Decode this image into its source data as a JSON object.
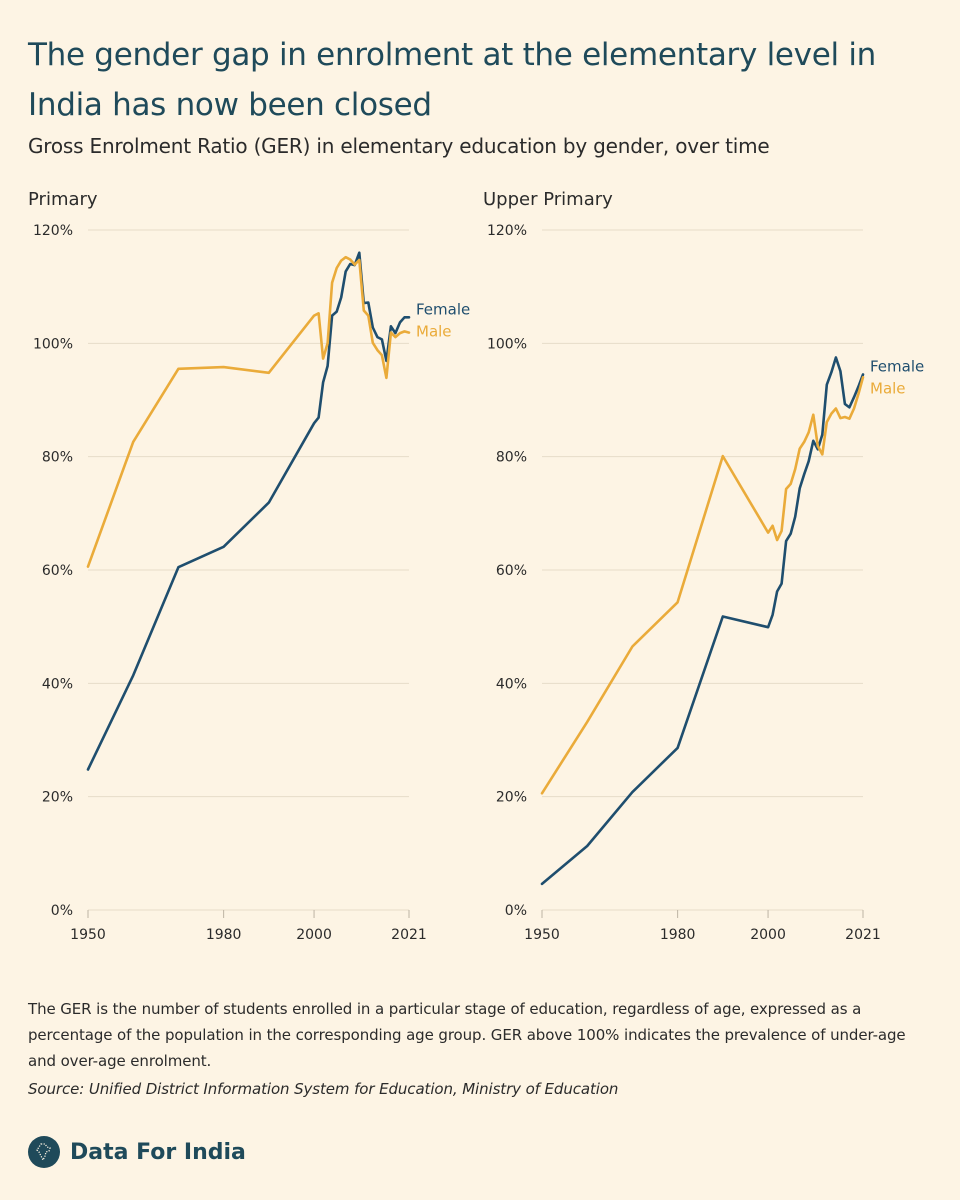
{
  "title": "The gender gap in enrolment at the elementary level in India has now been closed",
  "subtitle": "Gross Enrolment Ratio (GER) in elementary education by gender, over time",
  "footnote": "The GER is the number of students enrolled in a particular stage of education, regardless of age, expressed as a percentage of the population in the corresponding age group. GER above 100% indicates the prevalence of under-age and over-age enrolment.",
  "source": "Source: Unified District Information System for Education, Ministry of Education",
  "brand": {
    "name": "Data For India",
    "logo_icon": "india-map-icon"
  },
  "colors": {
    "female": "#1f4e6e",
    "male": "#eaab3a",
    "grid": "#e6dcc9",
    "background": "#fdf4e4"
  },
  "chart_data": [
    {
      "type": "line",
      "title": "Primary",
      "xlabel": "",
      "ylabel": "",
      "xlim": [
        1950,
        2021
      ],
      "ylim": [
        0,
        120
      ],
      "x_ticks": [
        1950,
        1980,
        2000,
        2021
      ],
      "y_ticks": [
        0,
        20,
        40,
        60,
        80,
        100,
        120
      ],
      "y_tick_labels": [
        "0%",
        "20%",
        "40%",
        "60%",
        "80%",
        "100%",
        "120%"
      ],
      "grid": "horizontal",
      "legend": "end-of-line labels",
      "series": [
        {
          "name": "Female",
          "color": "#1f4e6e",
          "x": [
            1950,
            1960,
            1970,
            1980,
            1990,
            2000,
            2001,
            2002,
            2003,
            2004,
            2005,
            2006,
            2007,
            2008,
            2009,
            2010,
            2011,
            2012,
            2013,
            2014,
            2015,
            2016,
            2017,
            2018,
            2019,
            2020,
            2021
          ],
          "y": [
            24.8,
            41.4,
            60.5,
            64.1,
            71.9,
            85.9,
            86.9,
            93.1,
            96.0,
            104.9,
            105.6,
            108.1,
            112.7,
            114.0,
            113.8,
            116.0,
            107.1,
            107.2,
            102.8,
            101.1,
            100.7,
            96.9,
            103.0,
            101.8,
            103.7,
            104.6,
            104.6
          ]
        },
        {
          "name": "Male",
          "color": "#eaab3a",
          "x": [
            1950,
            1960,
            1970,
            1980,
            1990,
            2000,
            2001,
            2002,
            2003,
            2004,
            2005,
            2006,
            2007,
            2008,
            2009,
            2010,
            2011,
            2012,
            2013,
            2014,
            2015,
            2016,
            2017,
            2018,
            2019,
            2020,
            2021
          ],
          "y": [
            60.6,
            82.6,
            95.5,
            95.8,
            94.8,
            104.9,
            105.3,
            97.3,
            100.0,
            110.7,
            113.3,
            114.6,
            115.2,
            114.8,
            113.9,
            114.7,
            105.8,
            104.9,
            100.1,
            98.8,
            97.9,
            93.9,
            101.9,
            101.1,
            101.8,
            102.1,
            101.9
          ]
        }
      ]
    },
    {
      "type": "line",
      "title": "Upper Primary",
      "xlabel": "",
      "ylabel": "",
      "xlim": [
        1950,
        2021
      ],
      "ylim": [
        0,
        120
      ],
      "x_ticks": [
        1950,
        1980,
        2000,
        2021
      ],
      "y_ticks": [
        0,
        20,
        40,
        60,
        80,
        100,
        120
      ],
      "y_tick_labels": [
        "0%",
        "20%",
        "40%",
        "60%",
        "80%",
        "100%",
        "120%"
      ],
      "grid": "horizontal",
      "legend": "end-of-line labels",
      "series": [
        {
          "name": "Female",
          "color": "#1f4e6e",
          "x": [
            1950,
            1960,
            1970,
            1980,
            1990,
            2000,
            2001,
            2002,
            2003,
            2004,
            2005,
            2006,
            2007,
            2008,
            2009,
            2010,
            2011,
            2012,
            2013,
            2014,
            2015,
            2016,
            2017,
            2018,
            2019,
            2020,
            2021
          ],
          "y": [
            4.6,
            11.3,
            20.8,
            28.6,
            51.8,
            49.9,
            52.1,
            56.2,
            57.6,
            65.1,
            66.4,
            69.4,
            74.4,
            76.9,
            79.2,
            82.8,
            81.3,
            83.9,
            92.7,
            94.9,
            97.5,
            95.1,
            89.3,
            88.7,
            90.5,
            92.4,
            94.5
          ]
        },
        {
          "name": "Male",
          "color": "#eaab3a",
          "x": [
            1950,
            1960,
            1970,
            1980,
            1990,
            2000,
            2001,
            2002,
            2003,
            2004,
            2005,
            2006,
            2007,
            2008,
            2009,
            2010,
            2011,
            2012,
            2013,
            2014,
            2015,
            2016,
            2017,
            2018,
            2019,
            2020,
            2021
          ],
          "y": [
            20.6,
            33.2,
            46.5,
            54.3,
            80.1,
            66.6,
            67.8,
            65.3,
            66.9,
            74.3,
            75.2,
            77.8,
            81.4,
            82.6,
            84.3,
            87.4,
            81.9,
            80.4,
            86.1,
            87.6,
            88.5,
            86.8,
            87.0,
            86.7,
            88.5,
            91.1,
            94.0
          ]
        }
      ]
    }
  ]
}
